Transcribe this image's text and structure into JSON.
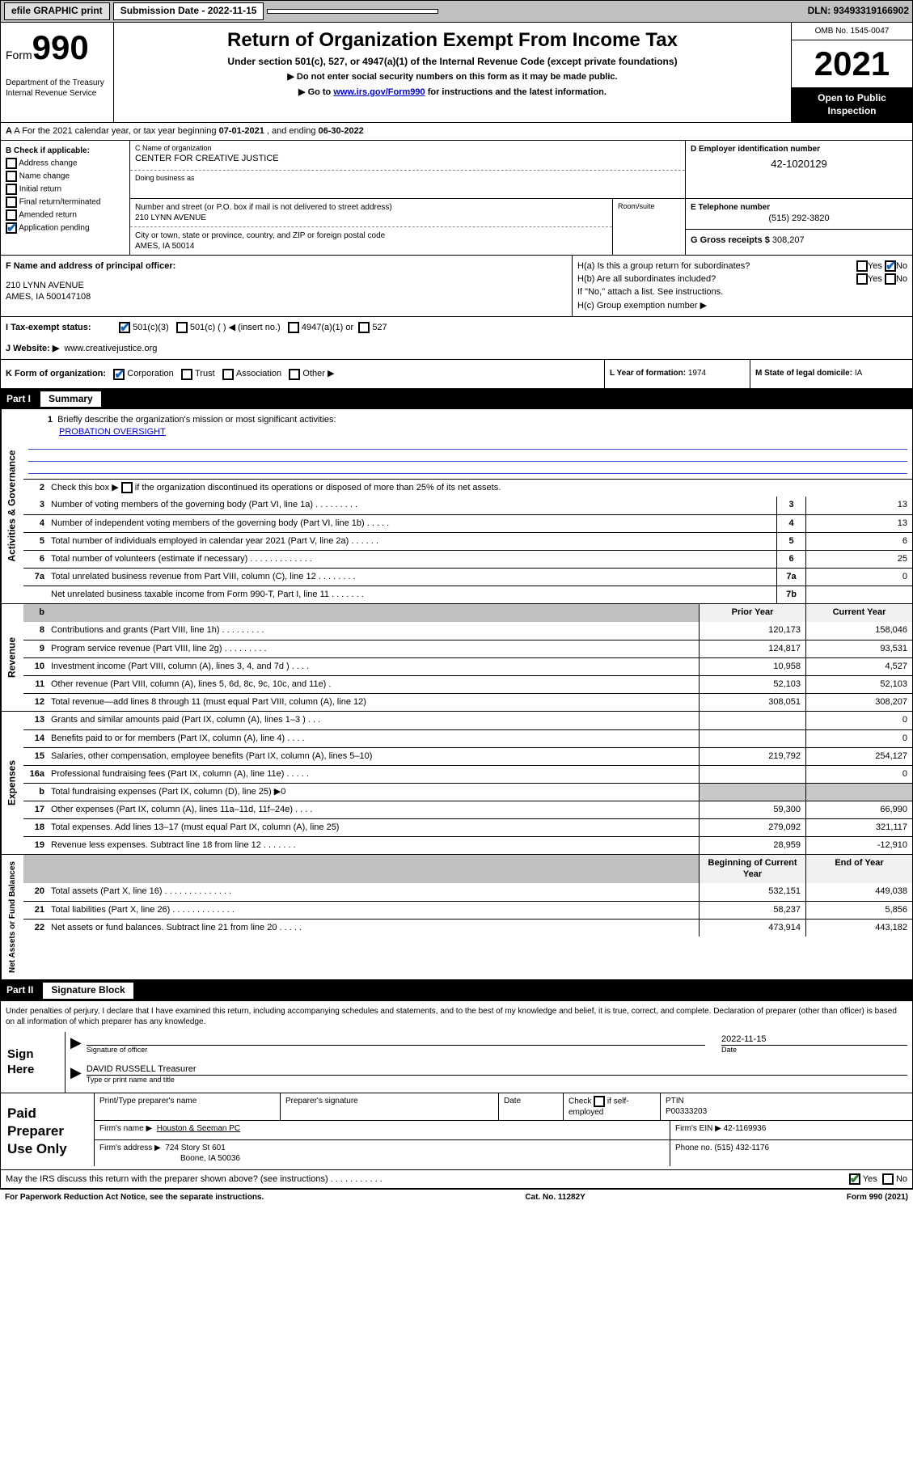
{
  "topbar": {
    "efile": "efile GRAPHIC print",
    "sub_label": "Submission Date - 2022-11-15",
    "dln": "DLN: 93493319166902"
  },
  "header": {
    "form_prefix": "Form",
    "form_no": "990",
    "dept": "Department of the Treasury",
    "irs": "Internal Revenue Service",
    "title": "Return of Organization Exempt From Income Tax",
    "subtitle": "Under section 501(c), 527, or 4947(a)(1) of the Internal Revenue Code (except private foundations)",
    "instr1": "▶ Do not enter social security numbers on this form as it may be made public.",
    "instr2_a": "▶ Go to ",
    "instr2_link": "www.irs.gov/Form990",
    "instr2_b": " for instructions and the latest information.",
    "omb": "OMB No. 1545-0047",
    "year": "2021",
    "inspect": "Open to Public Inspection"
  },
  "line_a": {
    "prefix": "A For the 2021 calendar year, or tax year beginning ",
    "begin": "07-01-2021",
    "mid": " , and ending ",
    "end": "06-30-2022"
  },
  "b": {
    "label": "B Check if applicable:",
    "o1": "Address change",
    "o2": "Name change",
    "o3": "Initial return",
    "o4": "Final return/terminated",
    "o5": "Amended return",
    "o6": "Application pending"
  },
  "c": {
    "name_label": "C Name of organization",
    "name": "CENTER FOR CREATIVE JUSTICE",
    "dba_label": "Doing business as",
    "addr_label": "Number and street (or P.O. box if mail is not delivered to street address)",
    "addr": "210 LYNN AVENUE",
    "room_label": "Room/suite",
    "city_label": "City or town, state or province, country, and ZIP or foreign postal code",
    "city": "AMES, IA  50014"
  },
  "d": {
    "label": "D Employer identification number",
    "val": "42-1020129"
  },
  "e": {
    "label": "E Telephone number",
    "val": "(515) 292-3820"
  },
  "g": {
    "label": "G Gross receipts $",
    "val": "308,207"
  },
  "f": {
    "label": "F Name and address of principal officer:",
    "l1": "210 LYNN AVENUE",
    "l2": "AMES, IA  500147108"
  },
  "h": {
    "ha": "H(a)  Is this a group return for subordinates?",
    "hb": "H(b)  Are all subordinates included?",
    "hb_note": "If \"No,\" attach a list. See instructions.",
    "hc": "H(c)  Group exemption number ▶",
    "yes": "Yes",
    "no": "No"
  },
  "i": {
    "label": "I    Tax-exempt status:",
    "o1": "501(c)(3)",
    "o2": "501(c) (   ) ◀ (insert no.)",
    "o3": "4947(a)(1) or",
    "o4": "527"
  },
  "j": {
    "label": "J   Website: ▶",
    "val": "www.creativejustice.org"
  },
  "k": {
    "label": "K Form of organization:",
    "o1": "Corporation",
    "o2": "Trust",
    "o3": "Association",
    "o4": "Other ▶"
  },
  "l": {
    "label": "L Year of formation:",
    "val": "1974"
  },
  "m": {
    "label": "M State of legal domicile:",
    "val": "IA"
  },
  "part1": {
    "tag": "Part I",
    "title": "Summary"
  },
  "part2": {
    "tag": "Part II",
    "title": "Signature Block"
  },
  "summary": {
    "s1_label": "Activities & Governance",
    "s2_label": "Revenue",
    "s3_label": "Expenses",
    "s4_label": "Net Assets or Fund Balances",
    "q1": "Briefly describe the organization's mission or most significant activities:",
    "mission": "PROBATION OVERSIGHT",
    "q2_a": "Check this box ▶",
    "q2_b": "if the organization discontinued its operations or disposed of more than 25% of its net assets.",
    "rows_gov": [
      {
        "n": "3",
        "d": "Number of voting members of the governing body (Part VI, line 1a)   .    .    .    .    .    .    .    .    .",
        "b": "3",
        "v": "13"
      },
      {
        "n": "4",
        "d": "Number of independent voting members of the governing body (Part VI, line 1b)   .    .    .    .    .",
        "b": "4",
        "v": "13"
      },
      {
        "n": "5",
        "d": "Total number of individuals employed in calendar year 2021 (Part V, line 2a)   .    .    .    .    .    .",
        "b": "5",
        "v": "6"
      },
      {
        "n": "6",
        "d": "Total number of volunteers (estimate if necessary)   .    .    .    .    .    .    .    .    .    .    .    .    .",
        "b": "6",
        "v": "25"
      },
      {
        "n": "7a",
        "d": "Total unrelated business revenue from Part VIII, column (C), line 12   .    .    .    .    .    .    .    .",
        "b": "7a",
        "v": "0"
      },
      {
        "n": "",
        "d": "Net unrelated business taxable income from Form 990-T, Part I, line 11   .    .    .    .    .    .    .",
        "b": "7b",
        "v": ""
      }
    ],
    "prior": "Prior Year",
    "current": "Current Year",
    "rows_rev": [
      {
        "n": "8",
        "d": "Contributions and grants (Part VIII, line 1h)   .    .    .    .    .    .    .    .    .",
        "p": "120,173",
        "c": "158,046"
      },
      {
        "n": "9",
        "d": "Program service revenue (Part VIII, line 2g)   .    .    .    .    .    .    .    .    .",
        "p": "124,817",
        "c": "93,531"
      },
      {
        "n": "10",
        "d": "Investment income (Part VIII, column (A), lines 3, 4, and 7d )   .    .    .    .",
        "p": "10,958",
        "c": "4,527"
      },
      {
        "n": "11",
        "d": "Other revenue (Part VIII, column (A), lines 5, 6d, 8c, 9c, 10c, and 11e)   .",
        "p": "52,103",
        "c": "52,103"
      },
      {
        "n": "12",
        "d": "Total revenue—add lines 8 through 11 (must equal Part VIII, column (A), line 12)",
        "p": "308,051",
        "c": "308,207"
      }
    ],
    "rows_exp": [
      {
        "n": "13",
        "d": "Grants and similar amounts paid (Part IX, column (A), lines 1–3 )   .    .    .",
        "p": "",
        "c": "0"
      },
      {
        "n": "14",
        "d": "Benefits paid to or for members (Part IX, column (A), line 4)   .    .    .    .",
        "p": "",
        "c": "0"
      },
      {
        "n": "15",
        "d": "Salaries, other compensation, employee benefits (Part IX, column (A), lines 5–10)",
        "p": "219,792",
        "c": "254,127"
      },
      {
        "n": "16a",
        "d": "Professional fundraising fees (Part IX, column (A), line 11e)   .    .    .    .    .",
        "p": "",
        "c": "0"
      },
      {
        "n": "b",
        "d": "Total fundraising expenses (Part IX, column (D), line 25) ▶0",
        "p": "",
        "c": "",
        "shade": true
      },
      {
        "n": "17",
        "d": "Other expenses (Part IX, column (A), lines 11a–11d, 11f–24e)   .    .    .    .",
        "p": "59,300",
        "c": "66,990"
      },
      {
        "n": "18",
        "d": "Total expenses. Add lines 13–17 (must equal Part IX, column (A), line 25)",
        "p": "279,092",
        "c": "321,117"
      },
      {
        "n": "19",
        "d": "Revenue less expenses. Subtract line 18 from line 12   .    .    .    .    .    .    .",
        "p": "28,959",
        "c": "-12,910"
      }
    ],
    "beg": "Beginning of Current Year",
    "eoy": "End of Year",
    "rows_net": [
      {
        "n": "20",
        "d": "Total assets (Part X, line 16)   .    .    .    .    .    .    .    .    .    .    .    .    .    .",
        "p": "532,151",
        "c": "449,038"
      },
      {
        "n": "21",
        "d": "Total liabilities (Part X, line 26)   .    .    .    .    .    .    .    .    .    .    .    .    .",
        "p": "58,237",
        "c": "5,856"
      },
      {
        "n": "22",
        "d": "Net assets or fund balances. Subtract line 21 from line 20   .    .    .    .    .",
        "p": "473,914",
        "c": "443,182"
      }
    ]
  },
  "sig": {
    "decl": "Under penalties of perjury, I declare that I have examined this return, including accompanying schedules and statements, and to the best of my knowledge and belief, it is true, correct, and complete. Declaration of preparer (other than officer) is based on all information of which preparer has any knowledge.",
    "here": "Sign Here",
    "off_label": "Signature of officer",
    "date_label": "Date",
    "date": "2022-11-15",
    "name": "DAVID RUSSELL Treasurer",
    "name_label": "Type or print name and title"
  },
  "paid": {
    "title": "Paid Preparer Use Only",
    "h1": "Print/Type preparer's name",
    "h2": "Preparer's signature",
    "h3": "Date",
    "h4_a": "Check",
    "h4_b": "if self-employed",
    "h5": "PTIN",
    "ptin": "P00333203",
    "firm_name_l": "Firm's name    ▶",
    "firm_name": "Houston & Seeman PC",
    "firm_ein_l": "Firm's EIN ▶",
    "firm_ein": "42-1169936",
    "firm_addr_l": "Firm's address ▶",
    "firm_addr1": "724 Story St 601",
    "firm_addr2": "Boone, IA  50036",
    "phone_l": "Phone no.",
    "phone": "(515) 432-1176",
    "discuss": "May the IRS discuss this return with the preparer shown above? (see instructions)   .    .    .    .    .    .    .    .    .    .    .",
    "yes": "Yes",
    "no": "No"
  },
  "footer": {
    "l": "For Paperwork Reduction Act Notice, see the separate instructions.",
    "c": "Cat. No. 11282Y",
    "r": "Form 990 (2021)"
  }
}
